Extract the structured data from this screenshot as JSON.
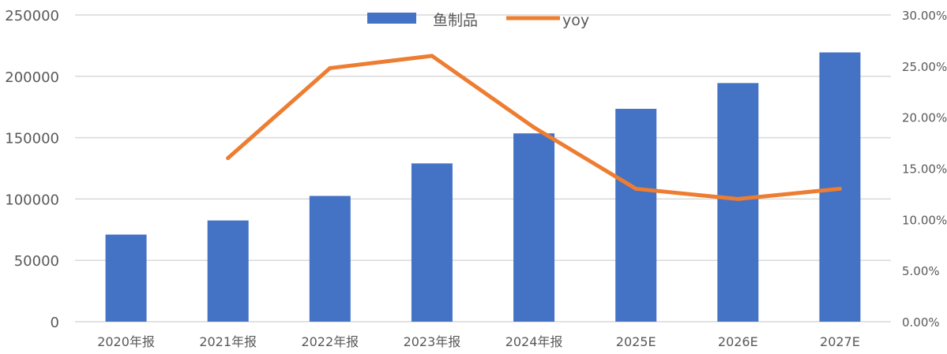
{
  "chart_data": {
    "type": "bar",
    "categories": [
      "2020年报",
      "2021年报",
      "2022年报",
      "2023年报",
      "2024年报",
      "2025E",
      "2026E",
      "2027E"
    ],
    "series": [
      {
        "name": "鱼制品",
        "type": "bar",
        "axis": "left",
        "color": "#4472C4",
        "values": [
          71000,
          82500,
          102500,
          129000,
          153500,
          173500,
          194500,
          219500
        ]
      },
      {
        "name": "yoy",
        "type": "line",
        "axis": "right",
        "color": "#ED7D31",
        "values": [
          null,
          0.16,
          0.248,
          0.26,
          0.19,
          0.13,
          0.12,
          0.13
        ]
      }
    ],
    "y_left": {
      "range": [
        0,
        250000
      ],
      "ticks": [
        "0",
        "50000",
        "100000",
        "150000",
        "200000",
        "250000"
      ]
    },
    "y_right": {
      "range": [
        0,
        0.3
      ],
      "ticks": [
        "0.00%",
        "5.00%",
        "10.00%",
        "15.00%",
        "20.00%",
        "25.00%",
        "30.00%"
      ]
    },
    "grid": true,
    "legend_position": "top-center"
  }
}
